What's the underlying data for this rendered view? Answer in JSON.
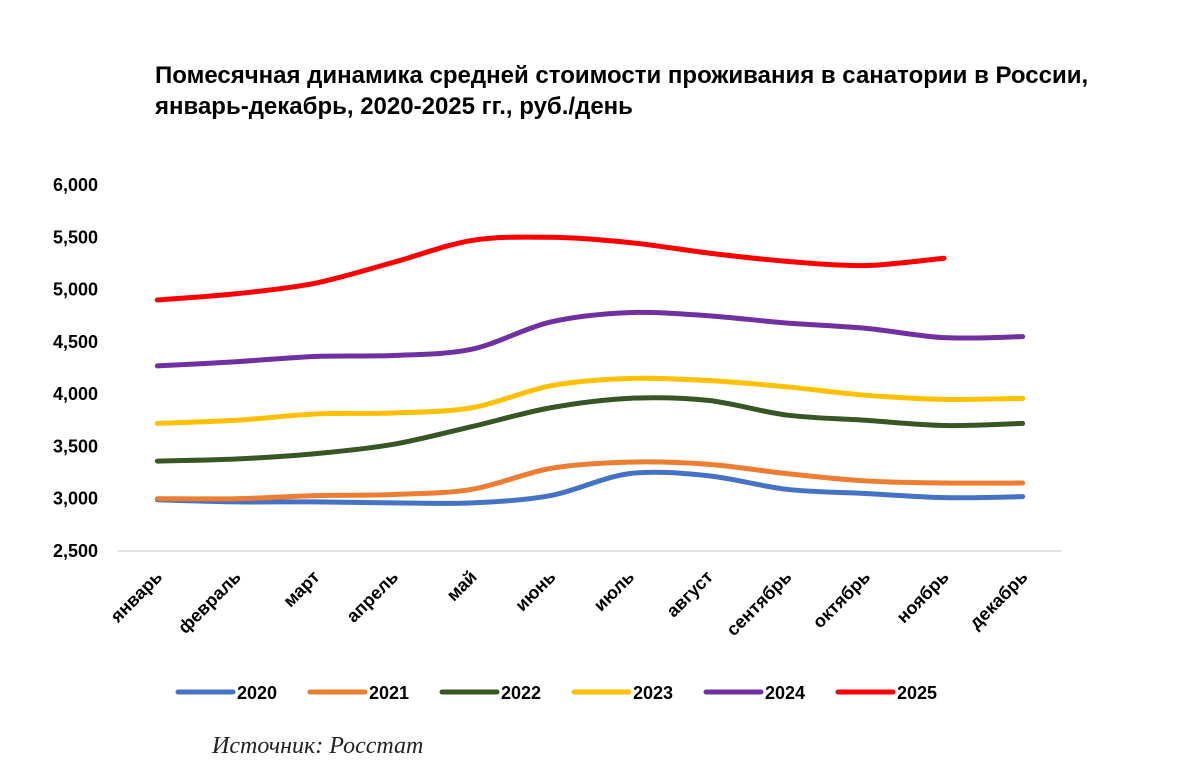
{
  "chart_data": {
    "type": "line",
    "title": "Помесячная динамика средней стоимости проживания в санатории  в России, январь-декабрь, 2020-2025 гг., руб./день",
    "xlabel": "",
    "ylabel": "",
    "ylim": [
      2500,
      6000
    ],
    "yticks": [
      2500,
      3000,
      3500,
      4000,
      4500,
      5000,
      5500,
      6000
    ],
    "ytick_labels": [
      "2,500",
      "3,000",
      "3,500",
      "4,000",
      "4,500",
      "5,000",
      "5,500",
      "6,000"
    ],
    "categories": [
      "январь",
      "февраль",
      "март",
      "апрель",
      "май",
      "июнь",
      "июль",
      "август",
      "сентябрь",
      "октябрь",
      "ноябрь",
      "декабрь"
    ],
    "grid": false,
    "legend_position": "bottom",
    "series": [
      {
        "name": "2020",
        "color": "#4472C4",
        "values": [
          2990,
          2970,
          2970,
          2960,
          2960,
          3030,
          3240,
          3220,
          3090,
          3050,
          3010,
          3020
        ]
      },
      {
        "name": "2021",
        "color": "#ED7D31",
        "values": [
          3000,
          3000,
          3030,
          3040,
          3090,
          3290,
          3350,
          3330,
          3240,
          3170,
          3150,
          3150
        ]
      },
      {
        "name": "2022",
        "color": "#375623",
        "values": [
          3360,
          3380,
          3430,
          3520,
          3690,
          3870,
          3960,
          3940,
          3800,
          3750,
          3700,
          3720
        ]
      },
      {
        "name": "2023",
        "color": "#FFC000",
        "values": [
          3720,
          3750,
          3810,
          3820,
          3870,
          4080,
          4150,
          4130,
          4070,
          3990,
          3950,
          3960
        ]
      },
      {
        "name": "2024",
        "color": "#7030A0",
        "values": [
          4270,
          4310,
          4360,
          4370,
          4430,
          4690,
          4780,
          4750,
          4680,
          4630,
          4540,
          4550
        ]
      },
      {
        "name": "2025",
        "color": "#FF0000",
        "values": [
          4900,
          4960,
          5060,
          5260,
          5470,
          5500,
          5450,
          5350,
          5270,
          5230,
          5300,
          null
        ]
      }
    ]
  },
  "source": "Источник: Росстат"
}
